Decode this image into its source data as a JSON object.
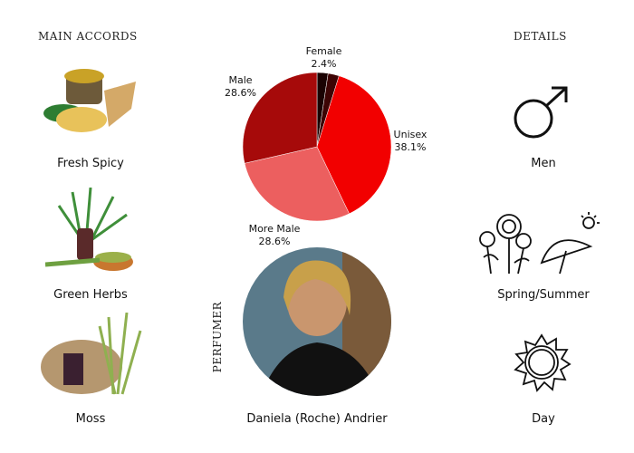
{
  "accords": {
    "title": "MAIN ACCORDS",
    "items": [
      {
        "label": "Fresh Spicy"
      },
      {
        "label": "Green Herbs"
      },
      {
        "label": "Moss"
      }
    ]
  },
  "details": {
    "title": "DETAILS",
    "items": [
      {
        "label": "Men",
        "icon": "male-symbol-icon"
      },
      {
        "label": "Spring/Summer",
        "icon": "flowers-umbrella-icon"
      },
      {
        "label": "Day",
        "icon": "sun-icon"
      }
    ]
  },
  "perfumer": {
    "title": "PERFUMER",
    "name": "Daniela (Roche) Andrier"
  },
  "chart_data": {
    "type": "pie",
    "slices": [
      {
        "name": "Female",
        "label": "2.4%",
        "value": 2.4,
        "color": "#1a0202"
      },
      {
        "name": "",
        "label": "",
        "value": 2.4,
        "color": "#3d0404"
      },
      {
        "name": "Unisex",
        "label": "38.1%",
        "value": 38.1,
        "color": "#f20000"
      },
      {
        "name": "More Male",
        "label": "28.6%",
        "value": 28.6,
        "color": "#ec5f5f"
      },
      {
        "name": "Male",
        "label": "28.6%",
        "value": 28.6,
        "color": "#a60a0a"
      }
    ]
  }
}
